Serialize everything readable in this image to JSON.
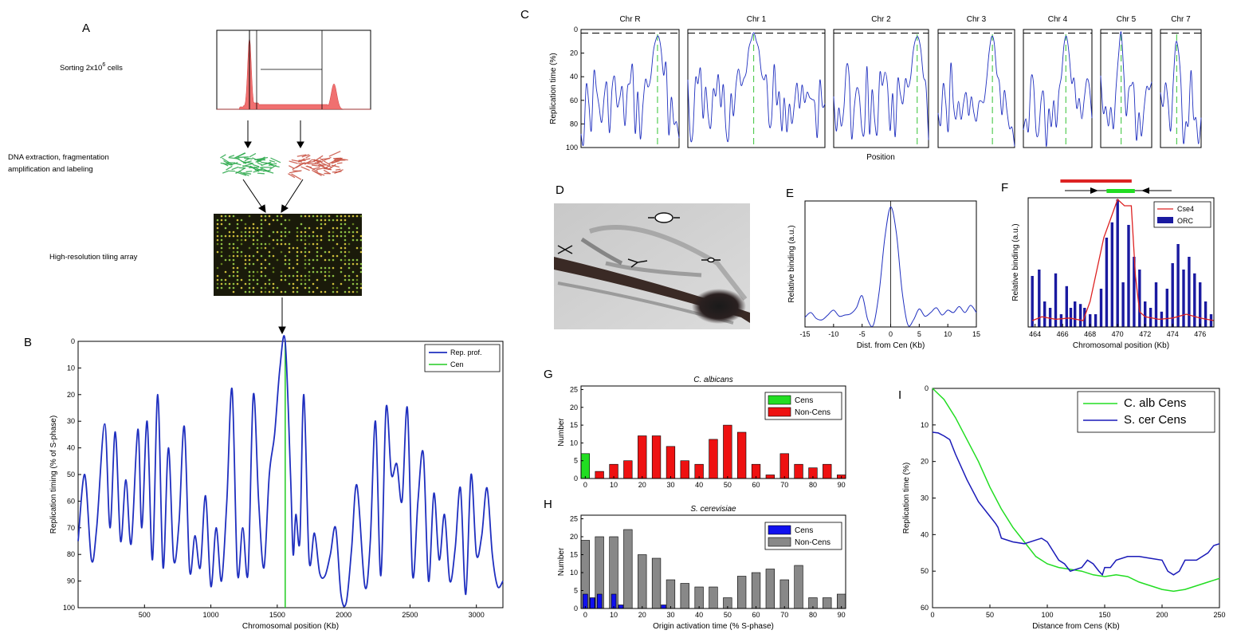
{
  "panel_letters": {
    "A": "A",
    "B": "B",
    "C": "C",
    "D": "D",
    "E": "E",
    "F": "F",
    "G": "G",
    "H": "H",
    "I": "I"
  },
  "panel_a": {
    "step1": "Sorting 2x10",
    "step1_sup": "6",
    "step1_suffix": " cells",
    "step2_line1": "DNA extraction, fragmentation",
    "step2_line2": "amplification and labeling",
    "step3": "High-resolution tiling array",
    "colors": {
      "histogram": "#f07070",
      "dna_early": "#2aa84a",
      "dna_late": "#c85040",
      "array_bg": "#1a1a0a",
      "array_dot_green": "#9ad24a",
      "array_dot_yellow": "#e0d040"
    }
  },
  "chart_data": [
    {
      "id": "B",
      "type": "line",
      "xlabel": "Chromosomal position (Kb)",
      "ylabel": "Replication timing (% of S-phase)",
      "xlim": [
        0,
        3200
      ],
      "ylim": [
        100,
        0
      ],
      "y_reversed": true,
      "xticks": [
        "500",
        "1000",
        "1500",
        "2000",
        "2500",
        "3000"
      ],
      "yticks": [
        "0",
        "10",
        "20",
        "30",
        "40",
        "50",
        "60",
        "70",
        "80",
        "90",
        "100"
      ],
      "legend": [
        "Rep. prof.",
        "Cen"
      ],
      "legend_position": "top-right",
      "cen_position": 1560,
      "series_color": "#1f2fbf",
      "cen_color": "#22cc22",
      "profile_x": [
        0,
        50,
        100,
        140,
        200,
        240,
        280,
        320,
        360,
        400,
        450,
        480,
        520,
        560,
        600,
        640,
        680,
        720,
        760,
        800,
        840,
        880,
        920,
        960,
        1000,
        1040,
        1080,
        1120,
        1160,
        1200,
        1240,
        1280,
        1320,
        1360,
        1400,
        1440,
        1480,
        1520,
        1560,
        1600,
        1620,
        1640,
        1670,
        1700,
        1740,
        1780,
        1820,
        1860,
        1900,
        1940,
        1980,
        2020,
        2060,
        2100,
        2160,
        2200,
        2240,
        2280,
        2320,
        2360,
        2400,
        2440,
        2480,
        2520,
        2560,
        2600,
        2640,
        2680,
        2720,
        2760,
        2800,
        2840,
        2880,
        2920,
        2960,
        3000,
        3040,
        3080,
        3120,
        3160,
        3200
      ],
      "profile_y": [
        75,
        50,
        82,
        70,
        31,
        70,
        34,
        75,
        52,
        76,
        33,
        70,
        30,
        82,
        20,
        85,
        40,
        82,
        68,
        32,
        86,
        73,
        85,
        58,
        92,
        70,
        90,
        60,
        18,
        87,
        70,
        87,
        20,
        60,
        85,
        50,
        35,
        10,
        0,
        50,
        80,
        65,
        75,
        20,
        82,
        72,
        87,
        88,
        80,
        70,
        95,
        98,
        78,
        54,
        92,
        76,
        30,
        88,
        25,
        50,
        46,
        60,
        25,
        88,
        60,
        42,
        90,
        57,
        82,
        65,
        90,
        78,
        55,
        95,
        50,
        80,
        73,
        55,
        80,
        92,
        90
      ]
    },
    {
      "id": "C",
      "type": "line",
      "xlabel": "Position",
      "ylabel": "Replication time (%)",
      "ylim": [
        100,
        0
      ],
      "yticks": [
        "0",
        "20",
        "40",
        "60",
        "80",
        "100"
      ],
      "chromosomes": [
        "Chr R",
        "Chr 1",
        "Chr 2",
        "Chr 3",
        "Chr 4",
        "Chr 5",
        "Chr 7"
      ],
      "series_color": "#1f2fbf",
      "cen_color": "#55cc55",
      "threshold_y": 3
    },
    {
      "id": "E",
      "type": "line",
      "xlabel": "Dist. from Cen (Kb)",
      "ylabel": "Relative binding (a.u.)",
      "xlim": [
        -15,
        15
      ],
      "xticks": [
        "-15",
        "-10",
        "-5",
        "0",
        "5",
        "10",
        "15"
      ],
      "series_color": "#1f2fbf",
      "x": [
        -15,
        -14,
        -13,
        -12,
        -11,
        -10,
        -9,
        -8,
        -7,
        -6,
        -5,
        -4,
        -3,
        -2,
        -1,
        0,
        1,
        2,
        3,
        4,
        5,
        6,
        7,
        8,
        9,
        10,
        11,
        12,
        13,
        14,
        15
      ],
      "y": [
        0.08,
        0.12,
        0.07,
        0.06,
        0.1,
        0.14,
        0.09,
        0.1,
        0.11,
        0.16,
        0.26,
        0.06,
        0.02,
        0.3,
        0.75,
        1.0,
        0.78,
        0.3,
        0.02,
        0.06,
        0.15,
        0.09,
        0.12,
        0.16,
        0.1,
        0.14,
        0.12,
        0.17,
        0.12,
        0.18,
        0.12
      ]
    },
    {
      "id": "F",
      "type": "bar",
      "xlabel": "Chromosomal position (Kb)",
      "ylabel": "Relative binding (a.u.)",
      "xlim": [
        463.5,
        477
      ],
      "xticks": [
        "464",
        "466",
        "468",
        "470",
        "472",
        "474",
        "476"
      ],
      "legend": [
        "Cse4",
        "ORC"
      ],
      "legend_position": "top-right",
      "cse4_color": "#dd2222",
      "orc_color": "#1a1aa0",
      "orc_x": [
        463.8,
        464.3,
        464.7,
        465.1,
        465.5,
        465.9,
        466.3,
        466.6,
        466.9,
        467.3,
        467.6,
        468.0,
        468.4,
        468.8,
        469.2,
        469.6,
        470.0,
        470.4,
        470.8,
        471.2,
        471.6,
        472.0,
        472.4,
        472.8,
        473.2,
        473.6,
        474.0,
        474.4,
        474.8,
        475.2,
        475.6,
        476.0,
        476.4,
        476.8
      ],
      "orc_values": [
        0.4,
        0.45,
        0.2,
        0.15,
        0.42,
        0.1,
        0.32,
        0.15,
        0.2,
        0.18,
        0.15,
        0.1,
        0.1,
        0.3,
        0.7,
        0.82,
        1.0,
        0.35,
        0.8,
        0.55,
        0.45,
        0.2,
        0.15,
        0.35,
        0.12,
        0.3,
        0.5,
        0.65,
        0.45,
        0.55,
        0.42,
        0.35,
        0.2,
        0.1
      ],
      "cse4_x": [
        463.8,
        464.5,
        465.5,
        466.5,
        467.5,
        468.0,
        468.5,
        469.0,
        469.5,
        470.0,
        470.5,
        471.0,
        471.3,
        471.6,
        472.0,
        473.0,
        474.0,
        475.0,
        476.0,
        477.0
      ],
      "cse4_y": [
        0.05,
        0.08,
        0.06,
        0.07,
        0.05,
        0.2,
        0.45,
        0.7,
        0.85,
        1.0,
        0.95,
        0.95,
        0.4,
        0.12,
        0.08,
        0.06,
        0.07,
        0.1,
        0.07,
        0.05
      ],
      "bar_red": [
        467.0,
        471.6
      ],
      "bar_green": [
        469.2,
        471.6
      ]
    },
    {
      "id": "G",
      "type": "bar",
      "title": "C. albicans",
      "ylabel": "Number",
      "xlim": [
        -1.5,
        91.5
      ],
      "ylim": [
        0,
        26
      ],
      "xticks": [
        "0",
        "10",
        "20",
        "30",
        "40",
        "50",
        "60",
        "70",
        "80",
        "90"
      ],
      "yticks": [
        "0",
        "5",
        "10",
        "15",
        "20",
        "25"
      ],
      "legend": [
        "Cens",
        "Non-Cens"
      ],
      "legend_position": "top-right",
      "cens_color": "#22dd22",
      "noncens_color": "#ee1111",
      "cens": {
        "x": [
          0
        ],
        "values": [
          7
        ]
      },
      "noncens": {
        "x": [
          5,
          10,
          15,
          20,
          25,
          30,
          35,
          40,
          45,
          50,
          55,
          60,
          65,
          70,
          75,
          80,
          85,
          90
        ],
        "values": [
          2,
          4,
          5,
          12,
          12,
          9,
          5,
          4,
          11,
          15,
          13,
          4,
          1,
          7,
          4,
          3,
          4,
          1
        ]
      }
    },
    {
      "id": "H",
      "type": "bar",
      "title": "S. cerevisiae",
      "xlabel": "Origin activation time (% S-phase)",
      "ylabel": "Number",
      "xlim": [
        -1.5,
        91.5
      ],
      "ylim": [
        0,
        26
      ],
      "xticks": [
        "0",
        "10",
        "20",
        "30",
        "40",
        "50",
        "60",
        "70",
        "80",
        "90"
      ],
      "yticks": [
        "0",
        "5",
        "10",
        "15",
        "20",
        "25"
      ],
      "legend": [
        "Cens",
        "Non-Cens"
      ],
      "legend_position": "top-right",
      "cens_color": "#1010ee",
      "noncens_color": "#888888",
      "noncens": {
        "x": [
          0,
          5,
          10,
          15,
          20,
          25,
          30,
          35,
          40,
          45,
          50,
          55,
          60,
          65,
          70,
          75,
          80,
          85,
          90
        ],
        "values": [
          19,
          20,
          20,
          22,
          15,
          14,
          8,
          7,
          6,
          6,
          3,
          9,
          10,
          11,
          8,
          12,
          3,
          3,
          4
        ]
      },
      "cens": {
        "x": [
          0,
          2.5,
          5,
          10,
          12.5,
          27.5
        ],
        "values": [
          4,
          3,
          4,
          4,
          1,
          1
        ]
      }
    },
    {
      "id": "I",
      "type": "line",
      "xlabel": "Distance from Cens (Kb)",
      "ylabel": "Replication time (%)",
      "xlim": [
        0,
        250
      ],
      "ylim": [
        60,
        0
      ],
      "y_reversed": true,
      "xticks": [
        "0",
        "50",
        "100",
        "150",
        "200",
        "250"
      ],
      "yticks": [
        "0",
        "10",
        "20",
        "30",
        "40",
        "50",
        "60"
      ],
      "legend_position": "top-right",
      "series": [
        {
          "name": "C. alb Cens",
          "color": "#22dd22",
          "x": [
            0,
            10,
            20,
            30,
            40,
            50,
            60,
            70,
            80,
            90,
            100,
            110,
            120,
            130,
            140,
            150,
            160,
            170,
            180,
            190,
            200,
            210,
            220,
            230,
            240,
            250
          ],
          "y": [
            0,
            3,
            8,
            14,
            20,
            27,
            33,
            38,
            42,
            46,
            48,
            49,
            49.5,
            50,
            51,
            51.5,
            51,
            51.5,
            53,
            54,
            55,
            55.5,
            55,
            54,
            53,
            52
          ]
        },
        {
          "name": "S. cer Cens",
          "color": "#1a1ab8",
          "x": [
            0,
            5,
            10,
            15,
            20,
            30,
            40,
            50,
            55,
            57,
            60,
            70,
            80,
            90,
            95,
            100,
            110,
            115,
            120,
            130,
            135,
            140,
            145,
            148,
            150,
            155,
            160,
            170,
            180,
            190,
            200,
            205,
            210,
            215,
            220,
            230,
            240,
            245,
            250
          ],
          "y": [
            12,
            12.2,
            13,
            14,
            18,
            25,
            31,
            35,
            37,
            38,
            41,
            42,
            42.5,
            41.5,
            41,
            42,
            47,
            48,
            50,
            49,
            47,
            48,
            50,
            51,
            49,
            49,
            47,
            46,
            46,
            46.5,
            47,
            50,
            51,
            50,
            47,
            47,
            45,
            43,
            42.5
          ]
        }
      ]
    }
  ]
}
